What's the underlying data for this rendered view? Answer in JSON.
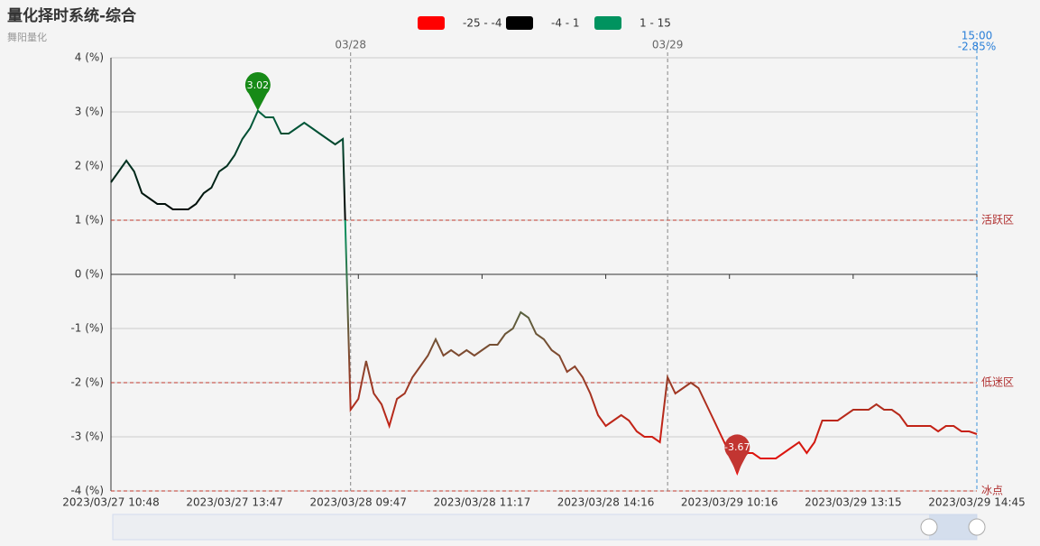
{
  "chart_data": {
    "type": "line",
    "title": "量化择时系统-综合",
    "subtitle": "舞阳量化",
    "categories": [
      "2023/03/27 10:48",
      null,
      null,
      null,
      null,
      null,
      null,
      null,
      null,
      null,
      null,
      null,
      null,
      null,
      null,
      null,
      "2023/03/27 13:47",
      null,
      null,
      null,
      null,
      null,
      null,
      null,
      null,
      null,
      null,
      null,
      null,
      null,
      null,
      null,
      "2023/03/28 09:47",
      null,
      null,
      null,
      null,
      null,
      null,
      null,
      null,
      null,
      null,
      null,
      null,
      null,
      null,
      null,
      "2023/03/28 11:17",
      null,
      null,
      null,
      null,
      null,
      null,
      null,
      null,
      null,
      null,
      null,
      null,
      null,
      null,
      null,
      "2023/03/28 14:16",
      null,
      null,
      null,
      null,
      null,
      null,
      null,
      null,
      null,
      null,
      null,
      null,
      null,
      null,
      null,
      "2023/03/29 10:16",
      null,
      null,
      null,
      null,
      null,
      null,
      null,
      null,
      null,
      null,
      null,
      null,
      null,
      null,
      null,
      "2023/03/29 13:15",
      null,
      null,
      null,
      null,
      null,
      null,
      null,
      null,
      null,
      null,
      null,
      null,
      null,
      null,
      null,
      "2023/03/29 14:45"
    ],
    "series": [
      {
        "values": [
          1.7,
          1.9,
          2.1,
          1.9,
          1.5,
          1.4,
          1.3,
          1.3,
          1.2,
          1.2,
          1.2,
          1.3,
          1.5,
          1.6,
          1.9,
          2.0,
          2.2,
          2.5,
          2.7,
          3.02,
          2.9,
          2.9,
          2.6,
          2.6,
          2.7,
          2.8,
          2.7,
          2.6,
          2.5,
          2.4,
          2.5,
          -2.5,
          -2.3,
          -1.6,
          -2.2,
          -2.4,
          -2.8,
          -2.3,
          -2.2,
          -1.9,
          -1.7,
          -1.5,
          -1.2,
          -1.5,
          -1.4,
          -1.5,
          -1.4,
          -1.5,
          -1.4,
          -1.3,
          -1.3,
          -1.1,
          -1.0,
          -0.7,
          -0.8,
          -1.1,
          -1.2,
          -1.4,
          -1.5,
          -1.8,
          -1.7,
          -1.9,
          -2.2,
          -2.6,
          -2.8,
          -2.7,
          -2.6,
          -2.7,
          -2.9,
          -3.0,
          -3.0,
          -3.1,
          -1.9,
          -2.2,
          -2.1,
          -2.0,
          -2.1,
          -2.4,
          -2.7,
          -3.0,
          -3.3,
          -3.67,
          -3.3,
          -3.3,
          -3.4,
          -3.4,
          -3.4,
          -3.3,
          -3.2,
          -3.1,
          -3.3,
          -3.1,
          -2.7,
          -2.7,
          -2.7,
          -2.6,
          -2.5,
          -2.5,
          -2.5,
          -2.4,
          -2.5,
          -2.5,
          -2.6,
          -2.8,
          -2.8,
          -2.8,
          -2.8,
          -2.9,
          -2.8,
          -2.8,
          -2.9,
          -2.9,
          -2.95
        ]
      }
    ],
    "pieces": [
      {
        "min": -25,
        "max": -4,
        "label": "-25 - -4",
        "color": "#ff0000"
      },
      {
        "min": -4,
        "max": 1,
        "label": "-4 - 1",
        "color": "#000000"
      },
      {
        "min": 1,
        "max": 15,
        "label": "1 - 15",
        "color": "#00935f"
      }
    ],
    "ylim": [
      -4,
      4
    ],
    "yticks": [
      {
        "value": -4,
        "label": "-4 (%)"
      },
      {
        "value": -3,
        "label": "-3 (%)"
      },
      {
        "value": -2,
        "label": "-2 (%)"
      },
      {
        "value": -1,
        "label": "-1 (%)"
      },
      {
        "value": 0,
        "label": "0 (%)"
      },
      {
        "value": 1,
        "label": "1 (%)"
      },
      {
        "value": 2,
        "label": "2 (%)"
      },
      {
        "value": 3,
        "label": "3 (%)"
      },
      {
        "value": 4,
        "label": "4 (%)"
      }
    ],
    "grid": true,
    "mark_lines": [
      {
        "value": 1,
        "label": "活跃区"
      },
      {
        "value": -2,
        "label": "低迷区"
      },
      {
        "value": -4,
        "label": "冰点"
      }
    ],
    "mark_points": [
      {
        "index": 19,
        "value": 3.02,
        "color": "#178a17"
      },
      {
        "index": 81,
        "value": -3.67,
        "color": "#c23531"
      }
    ],
    "date_lines": [
      {
        "index": 31,
        "label": "03/28"
      },
      {
        "index": 72,
        "label": "03/29"
      }
    ],
    "end_marker": {
      "time": "15:00",
      "value": -2.85,
      "label": "-2.85%"
    }
  }
}
